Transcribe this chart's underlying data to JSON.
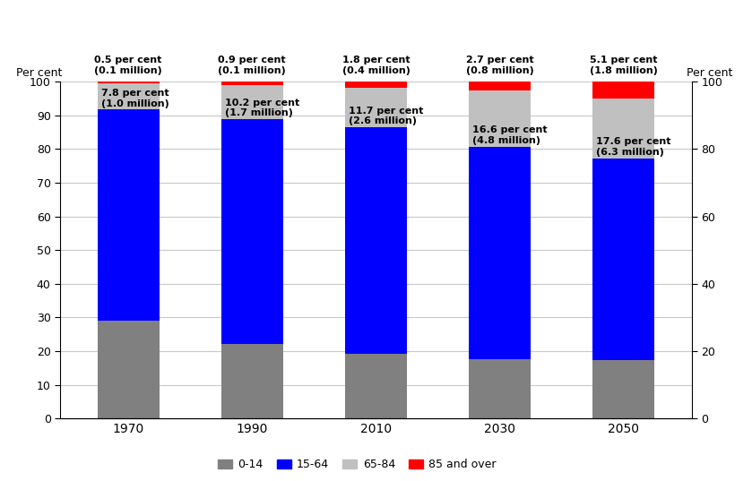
{
  "years": [
    "1970",
    "1990",
    "2010",
    "2030",
    "2050"
  ],
  "seg_0_14": [
    29.0,
    22.0,
    19.3,
    17.7,
    17.3
  ],
  "seg_15_64": [
    62.7,
    66.9,
    67.2,
    63.0,
    60.0
  ],
  "seg_65_84": [
    7.8,
    10.2,
    11.7,
    16.6,
    17.6
  ],
  "seg_85over": [
    0.5,
    0.9,
    1.8,
    2.7,
    5.1
  ],
  "color_0_14": "#808080",
  "color_15_64": "#0000FF",
  "color_65_84": "#C0C0C0",
  "color_85over": "#FF0000",
  "annotations_top": [
    "0.5 per cent\n(0.1 million)",
    "0.9 per cent\n(0.1 million)",
    "1.8 per cent\n(0.4 million)",
    "2.7 per cent\n(0.8 million)",
    "5.1 per cent\n(1.8 million)"
  ],
  "annotations_mid": [
    "7.8 per cent\n(1.0 million)",
    "10.2 per cent\n(1.7 million)",
    "11.7 per cent\n(2.6 million)",
    "16.6 per cent\n(4.8 million)",
    "17.6 per cent\n(6.3 million)"
  ],
  "ylabel_left": "Per cent",
  "ylabel_right": "Per cent",
  "ylim": [
    0,
    100
  ],
  "yticks_left": [
    0,
    10,
    20,
    30,
    40,
    50,
    60,
    70,
    80,
    90,
    100
  ],
  "yticks_right": [
    0,
    20,
    40,
    60,
    80,
    100
  ],
  "bar_width": 0.5,
  "legend_labels": [
    "0-14",
    "15-64",
    "65-84",
    "85 and over"
  ],
  "background_color": "#FFFFFF",
  "grid_color": "#C8C8C8"
}
